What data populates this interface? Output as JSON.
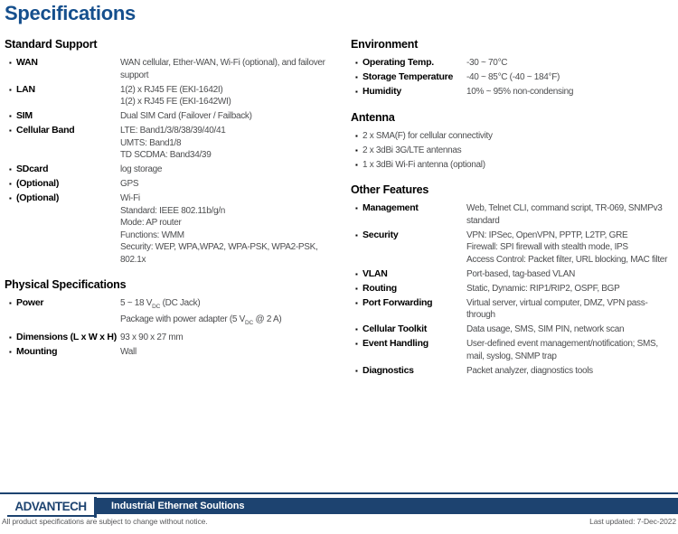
{
  "page_title": "Specifications",
  "accent_color": "#154f8d",
  "footer_bar_color": "#1d4370",
  "columns": [
    {
      "sections": [
        {
          "title": "Standard Support",
          "rows": [
            {
              "label": "WAN",
              "lines": [
                "WAN cellular, Ether-WAN, Wi-Fi (optional), and failover",
                "support"
              ]
            },
            {
              "label": "LAN",
              "lines": [
                "1(2) x RJ45 FE (EKI-1642I)",
                "1(2) x RJ45 FE (EKI-1642WI)"
              ]
            },
            {
              "label": "SIM",
              "lines": [
                "Dual SIM Card (Failover / Failback)"
              ]
            },
            {
              "label": "Cellular Band",
              "lines": [
                "LTE: Band1/3/8/38/39/40/41",
                "UMTS: Band1/8",
                "TD SCDMA: Band34/39"
              ]
            },
            {
              "label": "SDcard",
              "lines": [
                "log storage"
              ]
            },
            {
              "label": "(Optional)",
              "lines": [
                "GPS"
              ]
            },
            {
              "label": "(Optional)",
              "lines": [
                "Wi-Fi",
                "Standard: IEEE 802.11b/g/n",
                "Mode: AP router",
                "Functions: WMM",
                "Security: WEP, WPA,WPA2, WPA-PSK, WPA2-PSK,",
                "802.1x"
              ]
            }
          ]
        },
        {
          "title": "Physical Specifications",
          "rows": [
            {
              "label": "Power",
              "lines": [
                "5 ~ 18 V_{DC} (DC Jack)",
                "Package with power adapter (5 V_{DC} @ 2 A)"
              ]
            },
            {
              "label": "Dimensions (L x W x H)",
              "lines": [
                "93 x 90 x 27 mm"
              ]
            },
            {
              "label": "Mounting",
              "lines": [
                "Wall"
              ]
            }
          ]
        }
      ]
    },
    {
      "sections": [
        {
          "title": "Environment",
          "rows": [
            {
              "label": "Operating Temp.",
              "lines": [
                "-30 ~ 70°C"
              ]
            },
            {
              "label": "Storage Temperature",
              "lines": [
                "-40 ~ 85°C (-40 ~ 184°F)"
              ]
            },
            {
              "label": "Humidity",
              "lines": [
                "10% ~ 95% non-condensing"
              ]
            }
          ]
        },
        {
          "title": "Antenna",
          "rows": [
            {
              "label": "",
              "lines": [
                "2 x SMA(F) for cellular connectivity"
              ]
            },
            {
              "label": "",
              "lines": [
                "2 x 3dBi 3G/LTE antennas"
              ]
            },
            {
              "label": "",
              "lines": [
                "1 x 3dBi Wi-Fi antenna (optional)"
              ]
            }
          ]
        },
        {
          "title": "Other Features",
          "rows": [
            {
              "label": "Management",
              "lines": [
                "Web, Telnet CLI, command script, TR-069, SNMPv3",
                "standard"
              ]
            },
            {
              "label": "Security",
              "lines": [
                "VPN: IPSec, OpenVPN, PPTP, L2TP, GRE",
                "Firewall: SPI firewall with stealth mode, IPS",
                "Access Control: Packet filter, URL blocking, MAC filter"
              ]
            },
            {
              "label": "VLAN",
              "lines": [
                "Port-based, tag-based VLAN"
              ]
            },
            {
              "label": "Routing",
              "lines": [
                "Static, Dynamic: RIP1/RIP2, OSPF, BGP"
              ]
            },
            {
              "label": "Port Forwarding",
              "lines": [
                "Virtual server, virtual computer, DMZ, VPN pass-",
                "through"
              ]
            },
            {
              "label": "Cellular Toolkit",
              "lines": [
                "Data usage, SMS, SIM PIN, network scan"
              ]
            },
            {
              "label": "Event Handling",
              "lines": [
                "User-defined event management/notification; SMS,",
                "mail, syslog, SNMP trap"
              ]
            },
            {
              "label": "Diagnostics",
              "lines": [
                "Packet analyzer, diagnostics tools"
              ]
            }
          ]
        }
      ]
    }
  ],
  "footer": {
    "logo_text": "ADVANTECH",
    "tagline": "Industrial Ethernet Soultions",
    "disclaimer": "All product specifications are subject to change without notice.",
    "last_updated": "Last updated: 7-Dec-2022"
  }
}
